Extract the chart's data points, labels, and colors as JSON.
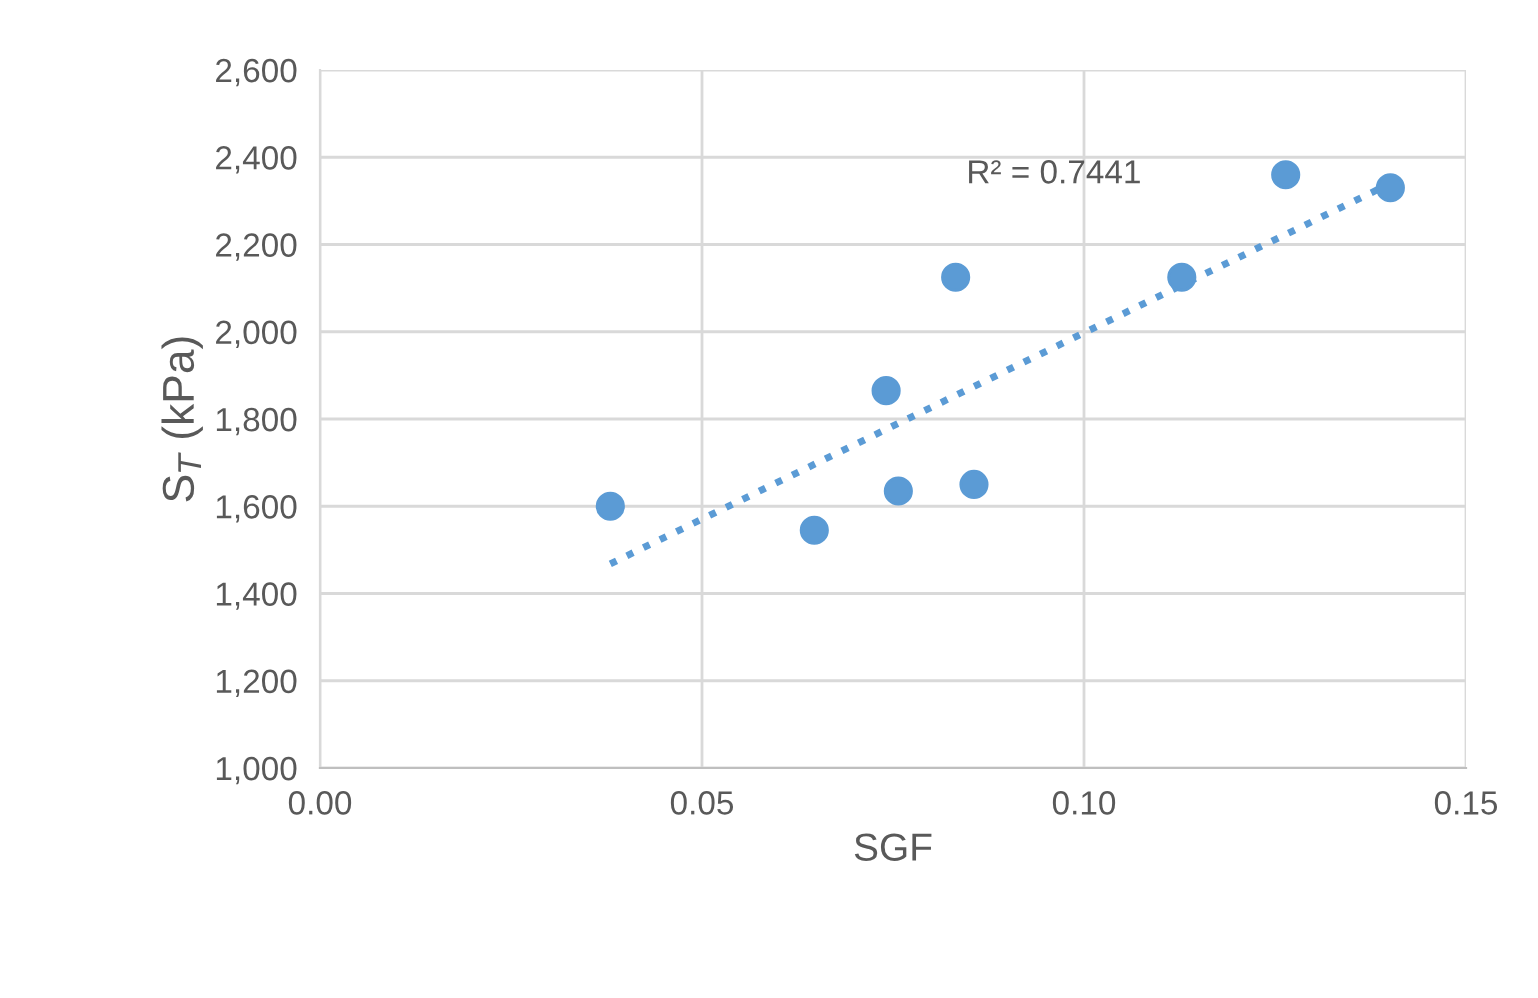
{
  "chart_data": {
    "type": "scatter",
    "xlabel": "SGF",
    "ylabel": "S$_{T}$ (kPa)",
    "series": [
      {
        "color": "#5b9bd5",
        "marker": "circle",
        "x": [
          0.038,
          0.0647,
          0.0741,
          0.0757,
          0.0832,
          0.0856,
          0.1128,
          0.1264,
          0.1401
        ],
        "values": [
          1600,
          1545,
          1865,
          1635,
          2125,
          1650,
          2125,
          2360,
          2330
        ]
      },
      {
        "type": "line",
        "color": "#5b9bd5",
        "line_style": "dotted",
        "marker": "none",
        "x": [
          0.038,
          0.1401
        ],
        "values": [
          1468,
          2340
        ]
      }
    ],
    "annotations": [
      "R² = 0.7441"
    ],
    "xlim": [
      0,
      0.15
    ],
    "xticks": [
      {
        "value": 0,
        "label": "0.00"
      },
      {
        "value": 0.05,
        "label": "0.05"
      },
      {
        "value": 0.1,
        "label": "0.10"
      },
      {
        "value": 0.15,
        "label": "0.15"
      }
    ],
    "ylim": [
      1000,
      2600
    ],
    "yticks": [
      {
        "value": 1000,
        "label": "1,000"
      },
      {
        "value": 1200,
        "label": "1,200"
      },
      {
        "value": 1400,
        "label": "1,400"
      },
      {
        "value": 1600,
        "label": "1,600"
      },
      {
        "value": 1800,
        "label": "1,800"
      },
      {
        "value": 2000,
        "label": "2,000"
      },
      {
        "value": 2200,
        "label": "2,200"
      },
      {
        "value": 2400,
        "label": "2,400"
      },
      {
        "value": 2600,
        "label": "2,600"
      }
    ],
    "grid": true,
    "legend": false
  }
}
